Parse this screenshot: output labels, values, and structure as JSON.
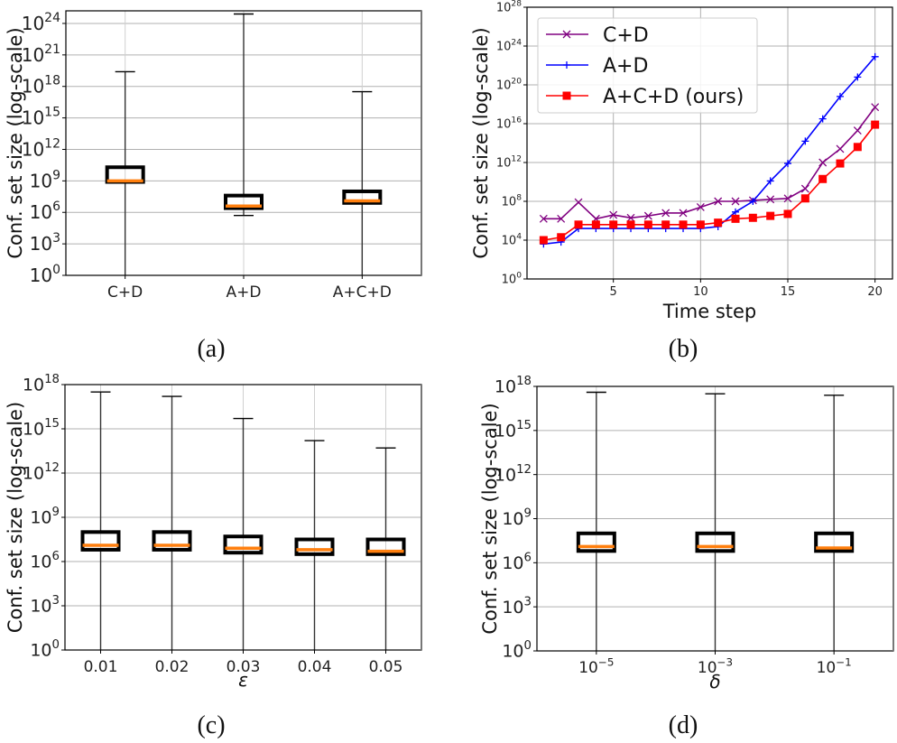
{
  "chart_data": [
    {
      "id": "a",
      "type": "box",
      "caption": "(a)",
      "title": "",
      "xlabel": "",
      "ylabel": "Conf. set size (log-scale)",
      "yscale": "log",
      "ylim_exp": [
        0,
        25.2
      ],
      "yticks_exp": [
        0,
        3,
        6,
        9,
        12,
        15,
        18,
        21,
        24
      ],
      "grid": true,
      "categories": [
        "C+D",
        "A+D",
        "A+C+D"
      ],
      "boxes_log10": [
        {
          "label": "C+D",
          "whislo": 0,
          "q1": 8.9,
          "median": 9.0,
          "q3": 10.3,
          "whishi": 19.4
        },
        {
          "label": "A+D",
          "whislo": 5.7,
          "q1": 6.4,
          "median": 6.6,
          "q3": 7.6,
          "whishi": 24.9
        },
        {
          "label": "A+C+D",
          "whislo": 0,
          "q1": 6.9,
          "median": 7.1,
          "q3": 8.0,
          "whishi": 17.5
        }
      ]
    },
    {
      "id": "b",
      "type": "line",
      "caption": "(b)",
      "title": "",
      "xlabel": "Time step",
      "ylabel": "Conf. set size (log-scale)",
      "yscale": "log",
      "ylim_exp": [
        0,
        28
      ],
      "yticks_exp": [
        0,
        4,
        8,
        12,
        16,
        20,
        24,
        28
      ],
      "xlim": [
        0.05,
        21.0
      ],
      "xticks": [
        5,
        10,
        15,
        20
      ],
      "grid": true,
      "legend_position": "top-left",
      "x": [
        1,
        2,
        3,
        4,
        5,
        6,
        7,
        8,
        9,
        10,
        11,
        12,
        13,
        14,
        15,
        16,
        17,
        18,
        19,
        20
      ],
      "series": [
        {
          "name": "C+D",
          "color": "#800080",
          "marker": "x",
          "values_log10": [
            6.2,
            6.2,
            7.9,
            6.2,
            6.6,
            6.3,
            6.5,
            6.8,
            6.8,
            7.4,
            8.0,
            8.0,
            8.1,
            8.2,
            8.3,
            9.3,
            12.0,
            13.4,
            15.3,
            17.7
          ]
        },
        {
          "name": "A+D",
          "color": "#0000ff",
          "marker": "+",
          "values_log10": [
            3.6,
            3.8,
            5.2,
            5.2,
            5.2,
            5.2,
            5.2,
            5.2,
            5.2,
            5.2,
            5.4,
            6.9,
            8.0,
            10.1,
            11.9,
            14.2,
            16.5,
            18.8,
            20.8,
            22.9
          ]
        },
        {
          "name": "A+C+D (ours)",
          "color": "#ff0000",
          "marker": "s",
          "values_log10": [
            4.0,
            4.3,
            5.6,
            5.6,
            5.6,
            5.6,
            5.6,
            5.6,
            5.6,
            5.6,
            5.8,
            6.2,
            6.3,
            6.5,
            6.7,
            8.3,
            10.3,
            11.9,
            13.6,
            15.9
          ]
        }
      ]
    },
    {
      "id": "c",
      "type": "box",
      "caption": "(c)",
      "title": "",
      "xlabel": "ε",
      "ylabel": "Conf. set size (log-scale)",
      "yscale": "log",
      "ylim_exp": [
        0,
        18
      ],
      "yticks_exp": [
        0,
        3,
        6,
        9,
        12,
        15,
        18
      ],
      "grid": true,
      "categories": [
        "0.01",
        "0.02",
        "0.03",
        "0.04",
        "0.05"
      ],
      "boxes_log10": [
        {
          "label": "0.01",
          "whislo": 0,
          "q1": 6.8,
          "median": 7.1,
          "q3": 8.0,
          "whishi": 17.5
        },
        {
          "label": "0.02",
          "whislo": 0,
          "q1": 6.8,
          "median": 7.1,
          "q3": 8.0,
          "whishi": 17.2
        },
        {
          "label": "0.03",
          "whislo": 0,
          "q1": 6.6,
          "median": 6.9,
          "q3": 7.7,
          "whishi": 15.7
        },
        {
          "label": "0.04",
          "whislo": 0,
          "q1": 6.5,
          "median": 6.8,
          "q3": 7.5,
          "whishi": 14.2
        },
        {
          "label": "0.05",
          "whislo": 0,
          "q1": 6.5,
          "median": 6.7,
          "q3": 7.5,
          "whishi": 13.7
        }
      ]
    },
    {
      "id": "d",
      "type": "box",
      "caption": "(d)",
      "title": "",
      "xlabel": "δ",
      "ylabel": "Conf. set size (log-scale)",
      "yscale": "log",
      "ylim_exp": [
        0,
        18
      ],
      "yticks_exp": [
        0,
        3,
        6,
        9,
        12,
        15,
        18
      ],
      "grid": true,
      "categories": [
        "10^-5",
        "10^-3",
        "10^-1"
      ],
      "category_display": [
        {
          "base": "10",
          "exp": "−5"
        },
        {
          "base": "10",
          "exp": "−3"
        },
        {
          "base": "10",
          "exp": "−1"
        }
      ],
      "boxes_log10": [
        {
          "label": "10^-5",
          "whislo": 0,
          "q1": 6.8,
          "median": 7.1,
          "q3": 8.0,
          "whishi": 17.6
        },
        {
          "label": "10^-3",
          "whislo": 0,
          "q1": 6.8,
          "median": 7.1,
          "q3": 8.0,
          "whishi": 17.5
        },
        {
          "label": "10^-1",
          "whislo": 0,
          "q1": 6.8,
          "median": 7.0,
          "q3": 8.0,
          "whishi": 17.4
        }
      ]
    }
  ],
  "style": {
    "median_color": "#ff7f0e",
    "box_color": "#000000",
    "grid_color": "#b0b0b0"
  }
}
